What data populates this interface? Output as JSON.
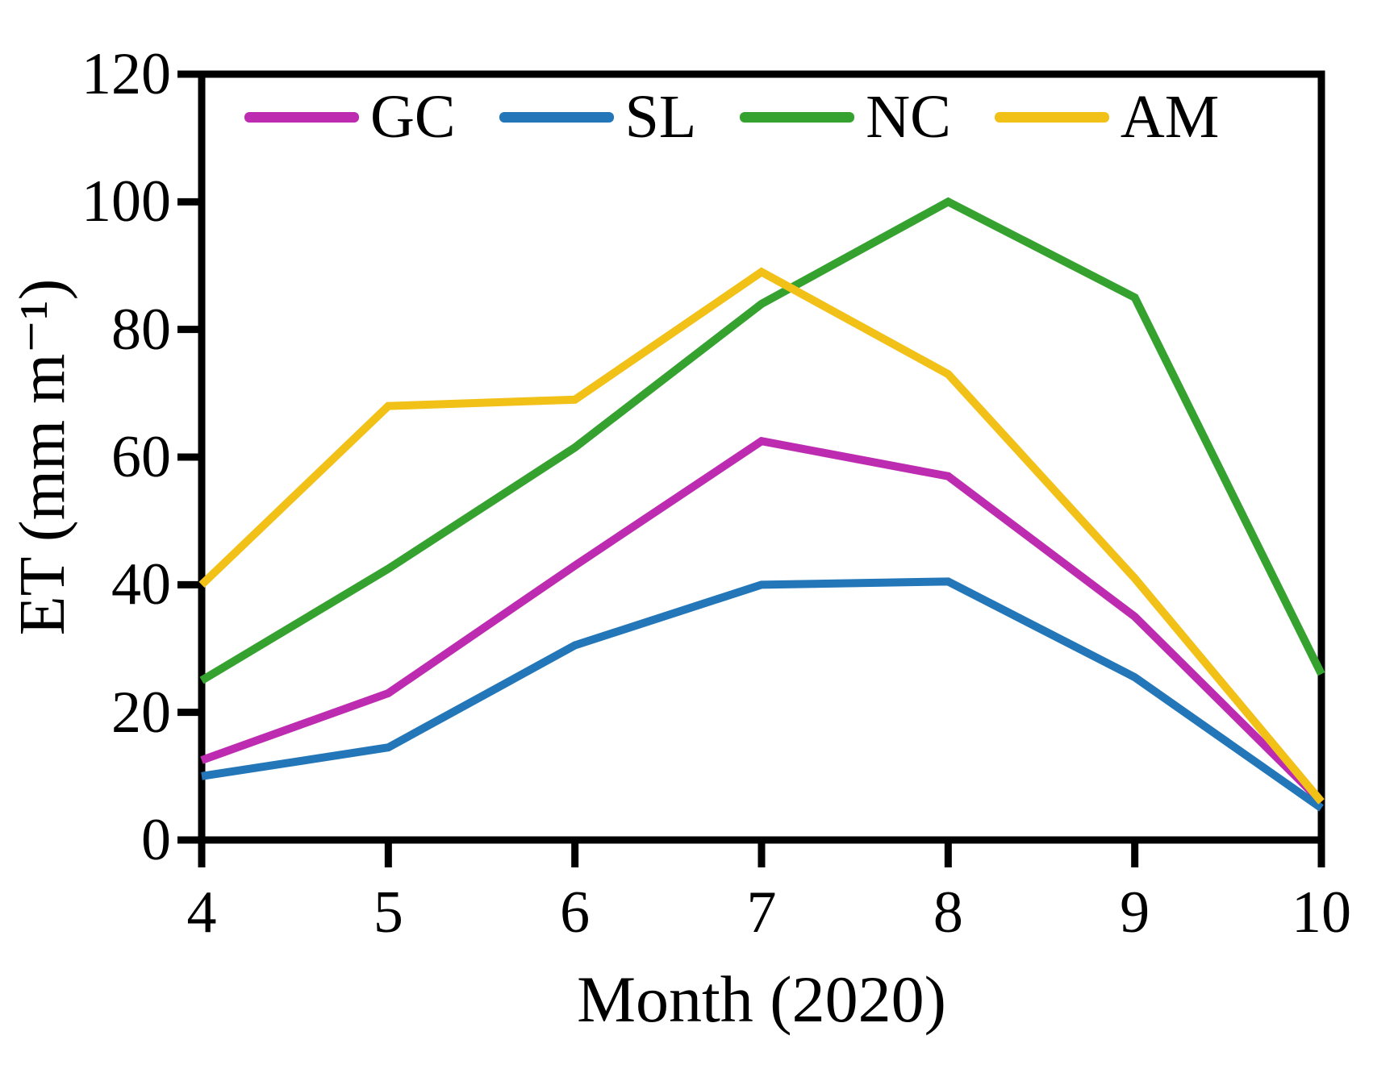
{
  "chart_data": {
    "type": "line",
    "title": "",
    "xlabel": "Month (2020)",
    "ylabel": "ET (mm m⁻¹)",
    "x": [
      4,
      5,
      6,
      7,
      8,
      9,
      10
    ],
    "x_ticks": [
      "4",
      "5",
      "6",
      "7",
      "8",
      "9",
      "10"
    ],
    "y_ticks": [
      "0",
      "20",
      "40",
      "60",
      "80",
      "100",
      "120"
    ],
    "xlim": [
      4,
      10
    ],
    "ylim": [
      0,
      120
    ],
    "grid": false,
    "legend_position": "top-inside-horizontal",
    "axis_color": "#000000",
    "series": [
      {
        "name": "GC",
        "color": "#bd2cb0",
        "values": [
          12.5,
          23,
          43,
          62.5,
          57,
          35,
          6
        ]
      },
      {
        "name": "SL",
        "color": "#2377b8",
        "values": [
          10,
          14.5,
          30.5,
          40,
          40.5,
          25.5,
          5
        ]
      },
      {
        "name": "NC",
        "color": "#35a22f",
        "values": [
          25,
          42.5,
          61.5,
          84,
          100,
          85,
          26
        ]
      },
      {
        "name": "AM",
        "color": "#f2c118",
        "values": [
          40,
          68,
          69,
          89,
          73,
          41,
          6
        ]
      }
    ]
  }
}
